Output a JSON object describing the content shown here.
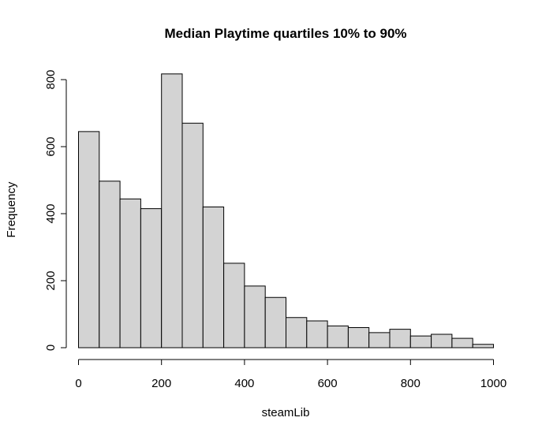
{
  "chart_data": {
    "type": "bar",
    "title": "Median Playtime quartiles 10% to 90%",
    "xlabel": "steamLib",
    "ylabel": "Frequency",
    "bin_width": 50,
    "bins": [
      {
        "x0": 0,
        "x1": 50,
        "count": 645
      },
      {
        "x0": 50,
        "x1": 100,
        "count": 497
      },
      {
        "x0": 100,
        "x1": 150,
        "count": 444
      },
      {
        "x0": 150,
        "x1": 200,
        "count": 415
      },
      {
        "x0": 200,
        "x1": 250,
        "count": 817
      },
      {
        "x0": 250,
        "x1": 300,
        "count": 670
      },
      {
        "x0": 300,
        "x1": 350,
        "count": 420
      },
      {
        "x0": 350,
        "x1": 400,
        "count": 252
      },
      {
        "x0": 400,
        "x1": 450,
        "count": 184
      },
      {
        "x0": 450,
        "x1": 500,
        "count": 150
      },
      {
        "x0": 500,
        "x1": 550,
        "count": 90
      },
      {
        "x0": 550,
        "x1": 600,
        "count": 80
      },
      {
        "x0": 600,
        "x1": 650,
        "count": 65
      },
      {
        "x0": 650,
        "x1": 700,
        "count": 60
      },
      {
        "x0": 700,
        "x1": 750,
        "count": 45
      },
      {
        "x0": 750,
        "x1": 800,
        "count": 55
      },
      {
        "x0": 800,
        "x1": 850,
        "count": 35
      },
      {
        "x0": 850,
        "x1": 900,
        "count": 40
      },
      {
        "x0": 900,
        "x1": 950,
        "count": 28
      },
      {
        "x0": 950,
        "x1": 1000,
        "count": 10
      }
    ],
    "xlim": [
      0,
      1000
    ],
    "ylim": [
      0,
      817
    ],
    "xticks": [
      0,
      200,
      400,
      600,
      800,
      1000
    ],
    "yticks": [
      0,
      200,
      400,
      600,
      800
    ],
    "grid": false,
    "colors": {
      "bar_fill": "#d3d3d3",
      "bar_stroke": "#000000",
      "axis": "#000000"
    }
  }
}
